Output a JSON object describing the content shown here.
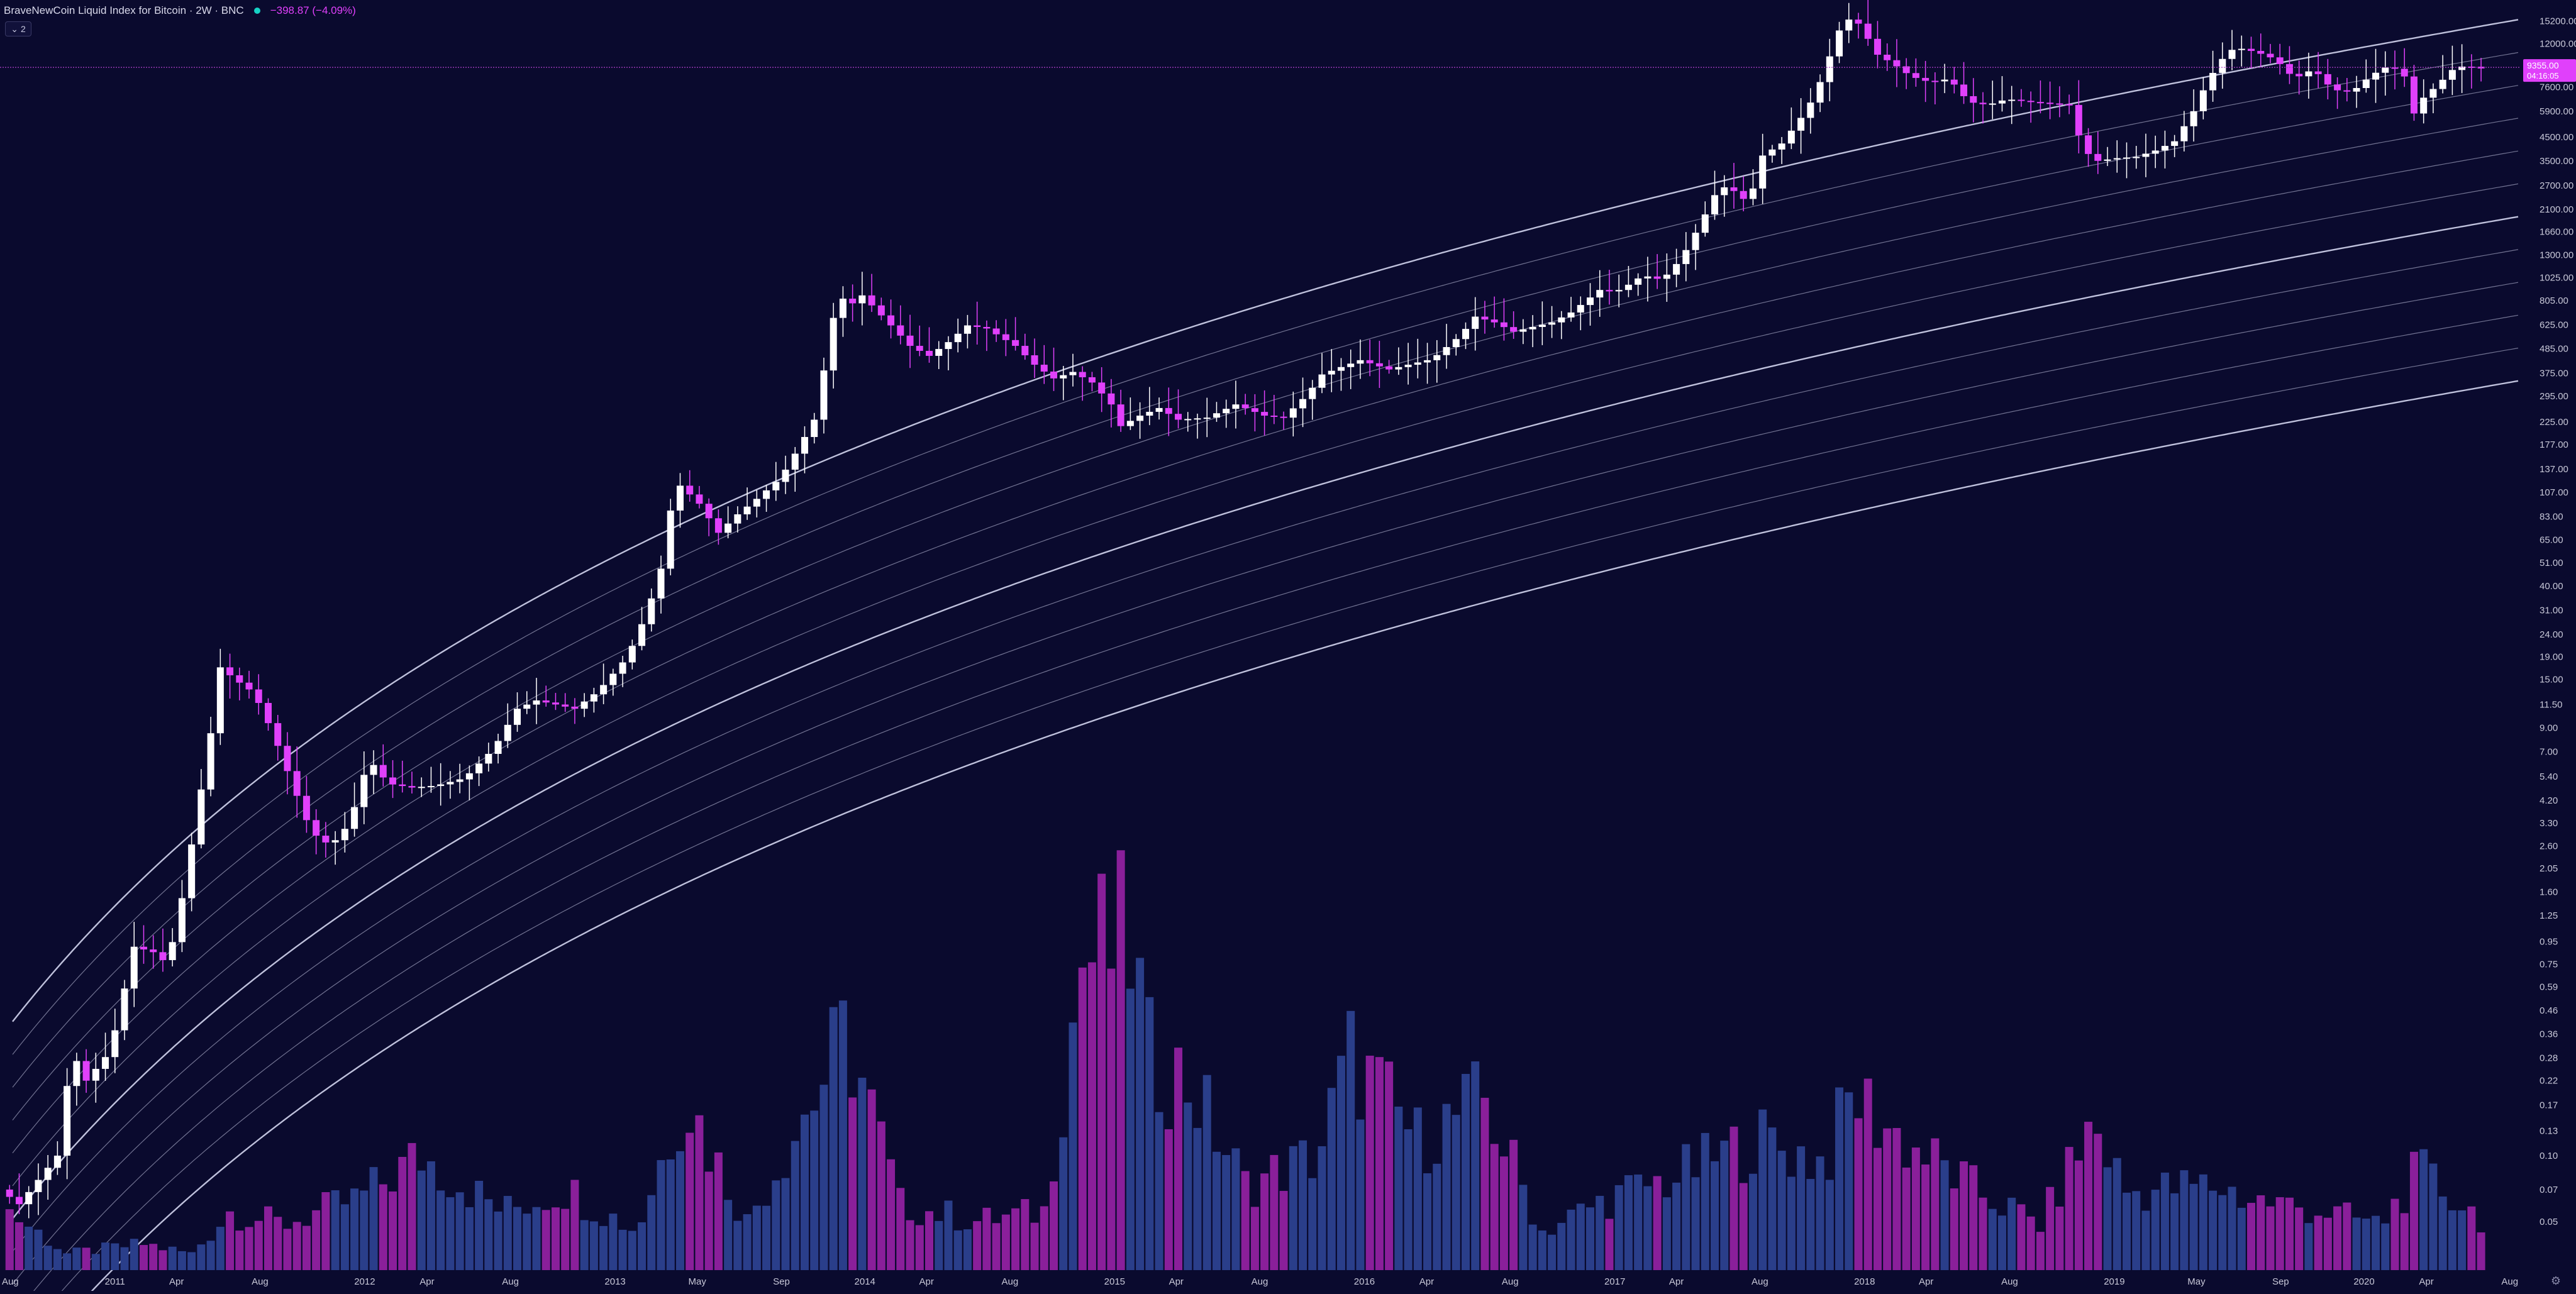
{
  "header": {
    "symbol_title": "BraveNewCoin Liquid Index for Bitcoin · 2W · BNC",
    "change_text": "−398.87 (−4.09%)",
    "collapse_label": "2"
  },
  "price_scale": {
    "labels": [
      "15200.00",
      "12000.00",
      "9350.00",
      "7600.00",
      "5900.00",
      "4500.00",
      "3500.00",
      "2700.00",
      "2100.00",
      "1660.00",
      "1300.00",
      "1025.00",
      "805.00",
      "625.00",
      "485.00",
      "375.00",
      "295.00",
      "225.00",
      "177.00",
      "137.00",
      "107.00",
      "83.00",
      "65.00",
      "51.00",
      "40.00",
      "31.00",
      "24.00",
      "19.00",
      "15.00",
      "11.50",
      "9.00",
      "7.00",
      "5.40",
      "4.20",
      "3.30",
      "2.60",
      "2.05",
      "1.60",
      "1.25",
      "0.95",
      "0.75",
      "0.59",
      "0.46",
      "0.36",
      "0.28",
      "0.22",
      "0.17",
      "0.13",
      "0.10",
      "0.07",
      "0.05"
    ],
    "current_price_label": "9355.00",
    "countdown_label": "04:16:05"
  },
  "chart_data": {
    "type": "candlestick",
    "interval": "2W",
    "y_scale": "log",
    "ylim": [
      0.03,
      19000
    ],
    "x_range": [
      "2010-07-17",
      "2020-08-15"
    ],
    "last_price": 9355,
    "x_ticks": [
      {
        "label": "Aug",
        "date": "2010-08-01"
      },
      {
        "label": "2011",
        "date": "2011-01-01"
      },
      {
        "label": "Apr",
        "date": "2011-04-01"
      },
      {
        "label": "Aug",
        "date": "2011-08-01"
      },
      {
        "label": "2012",
        "date": "2012-01-01"
      },
      {
        "label": "Apr",
        "date": "2012-04-01"
      },
      {
        "label": "Aug",
        "date": "2012-08-01"
      },
      {
        "label": "2013",
        "date": "2013-01-01"
      },
      {
        "label": "May",
        "date": "2013-05-01"
      },
      {
        "label": "Sep",
        "date": "2013-09-01"
      },
      {
        "label": "2014",
        "date": "2014-01-01"
      },
      {
        "label": "Apr",
        "date": "2014-04-01"
      },
      {
        "label": "Aug",
        "date": "2014-08-01"
      },
      {
        "label": "2015",
        "date": "2015-01-01"
      },
      {
        "label": "Apr",
        "date": "2015-04-01"
      },
      {
        "label": "Aug",
        "date": "2015-08-01"
      },
      {
        "label": "2016",
        "date": "2016-01-01"
      },
      {
        "label": "Apr",
        "date": "2016-04-01"
      },
      {
        "label": "Aug",
        "date": "2016-08-01"
      },
      {
        "label": "2017",
        "date": "2017-01-01"
      },
      {
        "label": "Apr",
        "date": "2017-04-01"
      },
      {
        "label": "Aug",
        "date": "2017-08-01"
      },
      {
        "label": "2018",
        "date": "2018-01-01"
      },
      {
        "label": "Apr",
        "date": "2018-04-01"
      },
      {
        "label": "Aug",
        "date": "2018-08-01"
      },
      {
        "label": "2019",
        "date": "2019-01-01"
      },
      {
        "label": "May",
        "date": "2019-05-01"
      },
      {
        "label": "Sep",
        "date": "2019-09-01"
      },
      {
        "label": "2020",
        "date": "2020-01-01"
      },
      {
        "label": "Apr",
        "date": "2020-04-01"
      },
      {
        "label": "Aug",
        "date": "2020-08-01"
      }
    ],
    "price_anchors": [
      [
        "2010-07-24",
        0.07
      ],
      [
        "2010-08-21",
        0.06
      ],
      [
        "2010-10-16",
        0.1
      ],
      [
        "2010-11-06",
        0.3
      ],
      [
        "2010-11-27",
        0.22
      ],
      [
        "2011-01-01",
        0.3
      ],
      [
        "2011-02-05",
        0.9
      ],
      [
        "2011-03-05",
        0.85
      ],
      [
        "2011-03-26",
        0.75
      ],
      [
        "2011-04-16",
        1.5
      ],
      [
        "2011-05-07",
        3.5
      ],
      [
        "2011-05-28",
        8.5
      ],
      [
        "2011-06-11",
        17
      ],
      [
        "2011-07-02",
        15
      ],
      [
        "2011-07-30",
        13
      ],
      [
        "2011-08-27",
        8.5
      ],
      [
        "2011-09-24",
        5.0
      ],
      [
        "2011-10-22",
        3.0
      ],
      [
        "2011-11-19",
        2.6
      ],
      [
        "2011-12-17",
        3.3
      ],
      [
        "2012-01-14",
        6.5
      ],
      [
        "2012-02-11",
        5.0
      ],
      [
        "2012-03-17",
        4.8
      ],
      [
        "2012-04-21",
        4.9
      ],
      [
        "2012-06-02",
        5.3
      ],
      [
        "2012-07-14",
        7.2
      ],
      [
        "2012-08-18",
        11
      ],
      [
        "2012-09-15",
        12
      ],
      [
        "2012-10-13",
        11.5
      ],
      [
        "2012-11-10",
        11
      ],
      [
        "2012-12-15",
        13.3
      ],
      [
        "2013-01-26",
        19
      ],
      [
        "2013-02-23",
        30
      ],
      [
        "2013-03-16",
        48
      ],
      [
        "2013-04-06",
        120
      ],
      [
        "2013-04-20",
        110
      ],
      [
        "2013-05-11",
        95
      ],
      [
        "2013-06-08",
        70
      ],
      [
        "2013-07-06",
        85
      ],
      [
        "2013-08-03",
        100
      ],
      [
        "2013-09-07",
        125
      ],
      [
        "2013-10-05",
        175
      ],
      [
        "2013-10-26",
        230
      ],
      [
        "2013-11-16",
        500
      ],
      [
        "2013-11-30",
        900
      ],
      [
        "2013-12-14",
        750
      ],
      [
        "2014-01-04",
        850
      ],
      [
        "2014-02-15",
        620
      ],
      [
        "2014-03-15",
        500
      ],
      [
        "2014-04-12",
        450
      ],
      [
        "2014-05-10",
        520
      ],
      [
        "2014-06-07",
        620
      ],
      [
        "2014-07-05",
        600
      ],
      [
        "2014-08-16",
        500
      ],
      [
        "2014-09-13",
        410
      ],
      [
        "2014-10-11",
        355
      ],
      [
        "2014-11-08",
        380
      ],
      [
        "2014-12-06",
        340
      ],
      [
        "2015-01-03",
        270
      ],
      [
        "2015-01-17",
        215
      ],
      [
        "2015-02-14",
        240
      ],
      [
        "2015-03-14",
        260
      ],
      [
        "2015-04-11",
        230
      ],
      [
        "2015-05-23",
        235
      ],
      [
        "2015-07-04",
        270
      ],
      [
        "2015-08-15",
        240
      ],
      [
        "2015-09-12",
        235
      ],
      [
        "2015-10-17",
        300
      ],
      [
        "2015-11-07",
        370
      ],
      [
        "2015-12-05",
        400
      ],
      [
        "2016-01-02",
        430
      ],
      [
        "2016-02-13",
        390
      ],
      [
        "2016-03-12",
        410
      ],
      [
        "2016-04-16",
        435
      ],
      [
        "2016-05-28",
        560
      ],
      [
        "2016-06-18",
        680
      ],
      [
        "2016-07-16",
        640
      ],
      [
        "2016-08-13",
        580
      ],
      [
        "2016-09-10",
        610
      ],
      [
        "2016-10-08",
        640
      ],
      [
        "2016-11-05",
        710
      ],
      [
        "2016-12-17",
        900
      ],
      [
        "2017-01-07",
        880
      ],
      [
        "2017-01-21",
        920
      ],
      [
        "2017-02-18",
        1050
      ],
      [
        "2017-03-18",
        1000
      ],
      [
        "2017-04-15",
        1250
      ],
      [
        "2017-05-13",
        1800
      ],
      [
        "2017-06-10",
        2700
      ],
      [
        "2017-07-08",
        2500
      ],
      [
        "2017-07-22",
        2200
      ],
      [
        "2017-08-12",
        3700
      ],
      [
        "2017-09-09",
        4200
      ],
      [
        "2017-10-07",
        5500
      ],
      [
        "2017-10-28",
        7000
      ],
      [
        "2017-11-18",
        10500
      ],
      [
        "2017-12-09",
        15800
      ],
      [
        "2018-01-06",
        14500
      ],
      [
        "2018-01-20",
        11000
      ],
      [
        "2018-02-17",
        9800
      ],
      [
        "2018-03-17",
        8500
      ],
      [
        "2018-04-14",
        8000
      ],
      [
        "2018-05-12",
        8300
      ],
      [
        "2018-06-09",
        6500
      ],
      [
        "2018-07-07",
        6300
      ],
      [
        "2018-08-04",
        6700
      ],
      [
        "2018-09-08",
        6500
      ],
      [
        "2018-10-06",
        6400
      ],
      [
        "2018-11-03",
        6300
      ],
      [
        "2018-11-24",
        3900
      ],
      [
        "2018-12-15",
        3500
      ],
      [
        "2019-01-12",
        3600
      ],
      [
        "2019-02-09",
        3650
      ],
      [
        "2019-03-09",
        3900
      ],
      [
        "2019-04-06",
        4300
      ],
      [
        "2019-05-04",
        5900
      ],
      [
        "2019-05-25",
        8200
      ],
      [
        "2019-06-22",
        11000
      ],
      [
        "2019-07-06",
        11500
      ],
      [
        "2019-08-03",
        11000
      ],
      [
        "2019-08-31",
        10200
      ],
      [
        "2019-09-28",
        8300
      ],
      [
        "2019-10-26",
        9200
      ],
      [
        "2019-11-23",
        7400
      ],
      [
        "2019-12-21",
        7200
      ],
      [
        "2020-01-18",
        8600
      ],
      [
        "2020-02-15",
        9600
      ],
      [
        "2020-03-07",
        8500
      ],
      [
        "2020-03-14",
        5300
      ],
      [
        "2020-04-04",
        6800
      ],
      [
        "2020-04-25",
        7800
      ],
      [
        "2020-05-16",
        9100
      ],
      [
        "2020-06-06",
        9600
      ],
      [
        "2020-06-20",
        9250
      ]
    ],
    "log_regression_bands": {
      "count": 12,
      "intercepts_log10": [
        -15.0,
        -15.15,
        -15.3,
        -15.45,
        -15.6,
        -15.75,
        -15.9,
        -16.05,
        -16.2,
        -16.35,
        -16.5,
        -16.65
      ],
      "exponent": 5.29
    },
    "volume": {
      "series_color_up": "#2a3e8a",
      "series_color_down": "#8a1f9a",
      "relative_anchors": [
        [
          "2010-07-24",
          0.18
        ],
        [
          "2010-10-16",
          0.05
        ],
        [
          "2011-02-05",
          0.08
        ],
        [
          "2011-04-16",
          0.05
        ],
        [
          "2011-06-11",
          0.18
        ],
        [
          "2011-08-27",
          0.14
        ],
        [
          "2011-12-17",
          0.22
        ],
        [
          "2012-03-17",
          0.35
        ],
        [
          "2012-07-14",
          0.18
        ],
        [
          "2012-10-13",
          0.25
        ],
        [
          "2013-01-26",
          0.12
        ],
        [
          "2013-04-06",
          0.55
        ],
        [
          "2013-05-11",
          0.38
        ],
        [
          "2013-07-06",
          0.15
        ],
        [
          "2013-09-07",
          0.4
        ],
        [
          "2013-11-30",
          0.72
        ],
        [
          "2014-02-15",
          0.2
        ],
        [
          "2014-06-07",
          0.15
        ],
        [
          "2014-09-13",
          0.18
        ],
        [
          "2014-11-08",
          0.95
        ],
        [
          "2015-01-17",
          1.0
        ],
        [
          "2015-02-14",
          0.65
        ],
        [
          "2015-04-11",
          0.58
        ],
        [
          "2015-07-04",
          0.26
        ],
        [
          "2015-10-17",
          0.35
        ],
        [
          "2015-12-05",
          0.65
        ],
        [
          "2016-03-12",
          0.4
        ],
        [
          "2016-06-18",
          0.52
        ],
        [
          "2016-09-10",
          0.12
        ],
        [
          "2016-12-17",
          0.22
        ],
        [
          "2017-03-18",
          0.28
        ],
        [
          "2017-07-22",
          0.4
        ],
        [
          "2017-10-28",
          0.33
        ],
        [
          "2017-12-09",
          0.54
        ],
        [
          "2018-02-17",
          0.4
        ],
        [
          "2018-06-09",
          0.24
        ],
        [
          "2018-09-08",
          0.14
        ],
        [
          "2018-11-24",
          0.45
        ],
        [
          "2019-01-12",
          0.24
        ],
        [
          "2019-05-25",
          0.26
        ],
        [
          "2019-07-06",
          0.22
        ],
        [
          "2019-10-26",
          0.18
        ],
        [
          "2020-01-18",
          0.14
        ],
        [
          "2020-03-14",
          0.3
        ],
        [
          "2020-06-20",
          0.15
        ]
      ]
    }
  },
  "colors": {
    "background": "#0a0a2e",
    "up_candle": "#ffffff",
    "down_candle": "#e040fb",
    "band_line": "#c9cbe6",
    "price_line": "#b03fc9",
    "axis_text": "#c8c8d8"
  }
}
